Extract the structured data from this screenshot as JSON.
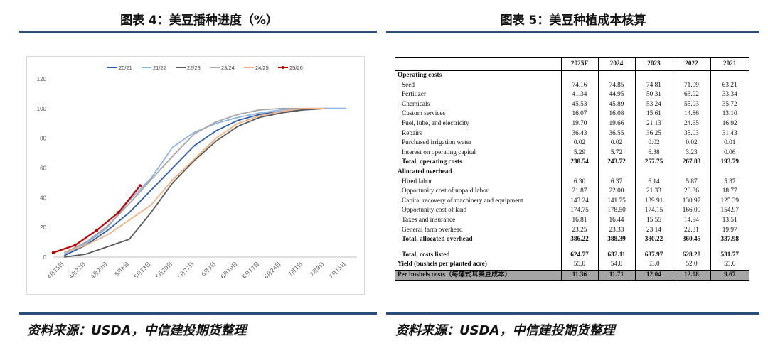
{
  "left_title": "图表 4：美豆播种进度（%）",
  "right_title": "图表 5：美豆种植成本核算",
  "left_source": "资料来源：USDA，中信建投期货整理",
  "right_source": "资料来源：USDA，中信建投期货整理",
  "colors": {
    "rule": "#2a4d7a"
  },
  "chart_data": {
    "type": "line",
    "title": "",
    "xlabel": "",
    "ylabel": "",
    "ylim": [
      0,
      120
    ],
    "yticks": [
      0,
      20,
      40,
      60,
      80,
      100,
      120
    ],
    "categories": [
      "4月15日",
      "4月22日",
      "4月29日",
      "5月6日",
      "5月13日",
      "5月20日",
      "5月27日",
      "6月3日",
      "6月10日",
      "6月17日",
      "6月24日",
      "7月1日",
      "7月8日",
      "7月15日"
    ],
    "grid": false,
    "legend": "top",
    "series": [
      {
        "name": "20/21",
        "color": "#2e5ea8",
        "points": [
          [
            0.5,
            1
          ],
          [
            1.5,
            8
          ],
          [
            2.5,
            18
          ],
          [
            3.5,
            30
          ],
          [
            4.5,
            45
          ],
          [
            5.5,
            60
          ],
          [
            6.5,
            75
          ],
          [
            7.5,
            85
          ],
          [
            8.5,
            92
          ],
          [
            9.5,
            96
          ],
          [
            10.5,
            98
          ],
          [
            11.5,
            99
          ],
          [
            12.5,
            100
          ],
          [
            13.5,
            100
          ]
        ]
      },
      {
        "name": "21/22",
        "color": "#8eb4e3",
        "points": [
          [
            0.5,
            2
          ],
          [
            1.5,
            9
          ],
          [
            2.5,
            20
          ],
          [
            3.5,
            38
          ],
          [
            4.5,
            53
          ],
          [
            5.5,
            74
          ],
          [
            6.5,
            84
          ],
          [
            7.5,
            90
          ],
          [
            8.5,
            94
          ],
          [
            9.5,
            97
          ],
          [
            10.5,
            99
          ],
          [
            11.5,
            100
          ],
          [
            12.5,
            100
          ],
          [
            13.5,
            100
          ]
        ]
      },
      {
        "name": "22/23",
        "color": "#595959",
        "points": [
          [
            0.5,
            0
          ],
          [
            1.5,
            2
          ],
          [
            2.5,
            7
          ],
          [
            3.5,
            12
          ],
          [
            4.5,
            30
          ],
          [
            5.5,
            50
          ],
          [
            6.5,
            65
          ],
          [
            7.5,
            78
          ],
          [
            8.5,
            88
          ],
          [
            9.5,
            94
          ],
          [
            10.5,
            97
          ],
          [
            11.5,
            99
          ],
          [
            12.5,
            100
          ]
        ]
      },
      {
        "name": "23/24",
        "color": "#a6a6a6",
        "points": [
          [
            0.5,
            3
          ],
          [
            1.5,
            10
          ],
          [
            2.5,
            21
          ],
          [
            3.5,
            36
          ],
          [
            4.5,
            52
          ],
          [
            5.5,
            68
          ],
          [
            6.5,
            83
          ],
          [
            7.5,
            91
          ],
          [
            8.5,
            96
          ],
          [
            9.5,
            99
          ],
          [
            10.5,
            100
          ],
          [
            11.5,
            100
          ],
          [
            12.5,
            100
          ]
        ]
      },
      {
        "name": "24/25",
        "color": "#f4b183",
        "points": [
          [
            0.5,
            3
          ],
          [
            1.5,
            8
          ],
          [
            2.5,
            15
          ],
          [
            3.5,
            25
          ],
          [
            4.5,
            35
          ],
          [
            5.5,
            52
          ],
          [
            6.5,
            66
          ],
          [
            7.5,
            80
          ],
          [
            8.5,
            90
          ],
          [
            9.5,
            95
          ],
          [
            10.5,
            98
          ],
          [
            11.5,
            100
          ],
          [
            12.5,
            100
          ]
        ]
      },
      {
        "name": "25/26",
        "color": "#c00000",
        "points": [
          [
            0.0,
            3
          ],
          [
            1.0,
            8
          ],
          [
            2.0,
            18
          ],
          [
            3.0,
            30
          ],
          [
            4.0,
            48
          ]
        ]
      }
    ]
  },
  "table": {
    "headers": [
      "",
      "2025F",
      "2024",
      "2023",
      "2022",
      "2021"
    ],
    "rows": [
      {
        "kind": "section",
        "label": "Operating costs",
        "values": []
      },
      {
        "kind": "item",
        "label": "Seed",
        "values": [
          "74.16",
          "74.85",
          "74.81",
          "71.09",
          "63.21"
        ]
      },
      {
        "kind": "item",
        "label": "Fertilizer",
        "values": [
          "41.34",
          "44.95",
          "50.31",
          "63.92",
          "33.34"
        ]
      },
      {
        "kind": "item",
        "label": "Chemicals",
        "values": [
          "45.53",
          "45.89",
          "53.24",
          "55.03",
          "35.72"
        ]
      },
      {
        "kind": "item",
        "label": "Custom services",
        "values": [
          "16.07",
          "16.08",
          "15.61",
          "14.86",
          "13.10"
        ]
      },
      {
        "kind": "item",
        "label": "Fuel, lube, and electricity",
        "values": [
          "19.70",
          "19.66",
          "21.13",
          "24.65",
          "16.92"
        ]
      },
      {
        "kind": "item",
        "label": "Repairs",
        "values": [
          "36.43",
          "36.55",
          "36.25",
          "35.03",
          "31.43"
        ]
      },
      {
        "kind": "item",
        "label": "Purchased irrigation water",
        "values": [
          "0.02",
          "0.02",
          "0.02",
          "0.02",
          "0.01"
        ]
      },
      {
        "kind": "item",
        "label": "Interest on operating capital",
        "values": [
          "5.29",
          "5.72",
          "6.38",
          "3.23",
          "0.06"
        ]
      },
      {
        "kind": "total",
        "label": "Total, operating costs",
        "values": [
          "238.54",
          "243.72",
          "257.75",
          "267.83",
          "193.79"
        ]
      },
      {
        "kind": "section",
        "label": "Allocated overhead",
        "values": []
      },
      {
        "kind": "item",
        "label": "Hired labor",
        "values": [
          "6.30",
          "6.37",
          "6.14",
          "5.87",
          "5.37"
        ]
      },
      {
        "kind": "item",
        "label": "Opportunity cost of unpaid labor",
        "values": [
          "21.87",
          "22.00",
          "21.33",
          "20.36",
          "18.77"
        ]
      },
      {
        "kind": "item",
        "label": "Capital recovery of machinery and equipment",
        "values": [
          "143.24",
          "141.75",
          "139.91",
          "130.97",
          "125.39"
        ]
      },
      {
        "kind": "item",
        "label": "Opportunity cost of land",
        "values": [
          "174.75",
          "178.50",
          "174.15",
          "166.00",
          "154.97"
        ]
      },
      {
        "kind": "item",
        "label": "Taxes and insurance",
        "values": [
          "16.81",
          "16.44",
          "15.55",
          "14.94",
          "13.51"
        ]
      },
      {
        "kind": "item",
        "label": "General farm overhead",
        "values": [
          "23.25",
          "23.33",
          "23.14",
          "22.31",
          "19.97"
        ]
      },
      {
        "kind": "total",
        "label": "Total, allocated overhead",
        "values": [
          "386.22",
          "388.39",
          "380.22",
          "360.45",
          "337.98"
        ]
      },
      {
        "kind": "spacer",
        "label": "",
        "values": [
          "",
          "",
          "",
          "",
          ""
        ]
      },
      {
        "kind": "total",
        "label": "Total, costs listed",
        "values": [
          "624.77",
          "632.11",
          "637.97",
          "628.28",
          "531.77"
        ]
      },
      {
        "kind": "bold",
        "label": "Yield (bushels per planted acre)",
        "values": [
          "55.0",
          "54.0",
          "53.0",
          "52.0",
          "55.0"
        ]
      },
      {
        "kind": "per",
        "label": "Per bushels costs（每蒲式耳美豆成本）",
        "values": [
          "11.36",
          "11.71",
          "12.04",
          "12.08",
          "9.67"
        ]
      }
    ]
  }
}
